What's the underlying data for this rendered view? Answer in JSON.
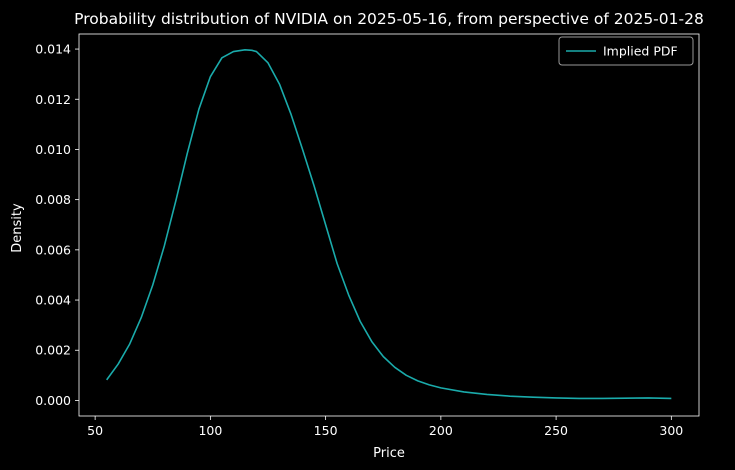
{
  "chart_data": {
    "type": "line",
    "title": "Probability distribution of NVIDIA on 2025-05-16, from perspective of 2025-01-28",
    "xlabel": "Price",
    "ylabel": "Density",
    "xlim": [
      43,
      312
    ],
    "ylim": [
      -0.00062,
      0.0146
    ],
    "xticks": [
      50,
      100,
      150,
      200,
      250,
      300
    ],
    "xtick_labels": [
      "50",
      "100",
      "150",
      "200",
      "250",
      "300"
    ],
    "yticks": [
      0.0,
      0.002,
      0.004,
      0.006,
      0.008,
      0.01,
      0.012,
      0.014
    ],
    "ytick_labels": [
      "0.000",
      "0.002",
      "0.004",
      "0.006",
      "0.008",
      "0.010",
      "0.012",
      "0.014"
    ],
    "grid": false,
    "legend_position": "top-right",
    "colors": {
      "background": "#000000",
      "axes": "#ffffff",
      "line": "#1aabab"
    },
    "series": [
      {
        "name": "Implied PDF",
        "x": [
          55,
          60,
          65,
          70,
          75,
          80,
          85,
          90,
          95,
          100,
          105,
          110,
          115,
          118,
          120,
          125,
          130,
          135,
          140,
          145,
          150,
          155,
          160,
          165,
          170,
          175,
          180,
          185,
          190,
          195,
          200,
          210,
          220,
          230,
          240,
          250,
          260,
          270,
          280,
          290,
          300
        ],
        "y": [
          0.00082,
          0.00145,
          0.00225,
          0.0033,
          0.0046,
          0.00615,
          0.00795,
          0.00985,
          0.0116,
          0.0129,
          0.01365,
          0.0139,
          0.01397,
          0.01395,
          0.0139,
          0.01345,
          0.0126,
          0.0114,
          0.01,
          0.00855,
          0.007,
          0.00545,
          0.0042,
          0.00315,
          0.00235,
          0.00175,
          0.00132,
          0.001,
          0.00078,
          0.00062,
          0.0005,
          0.00034,
          0.00024,
          0.00017,
          0.00013,
          0.0001,
          8e-05,
          8e-05,
          9e-05,
          0.0001,
          8e-05
        ]
      }
    ]
  }
}
